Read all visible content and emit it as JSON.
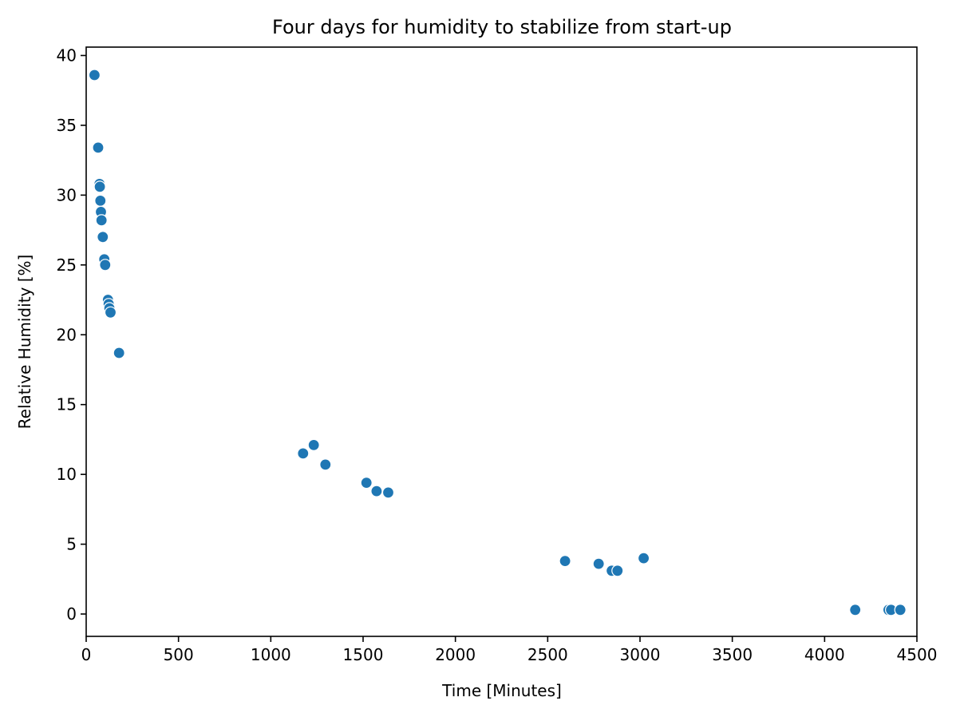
{
  "chart_data": {
    "type": "scatter",
    "title": "Four days for humidity to stabilize from start-up",
    "xlabel": "Time [Minutes]",
    "ylabel": "Relative Humidity [%]",
    "xlim": [
      0,
      4500
    ],
    "ylim": [
      -1.6,
      40.6
    ],
    "xticks": [
      0,
      500,
      1000,
      1500,
      2000,
      2500,
      3000,
      3500,
      4000,
      4500
    ],
    "yticks": [
      0,
      5,
      10,
      15,
      20,
      25,
      30,
      35,
      40
    ],
    "grid": false,
    "legend": "none",
    "color": "#1f77b4",
    "points": [
      {
        "x": 45,
        "y": 38.6
      },
      {
        "x": 65,
        "y": 33.4
      },
      {
        "x": 72,
        "y": 30.8
      },
      {
        "x": 74,
        "y": 30.6
      },
      {
        "x": 77,
        "y": 29.6
      },
      {
        "x": 80,
        "y": 28.8
      },
      {
        "x": 83,
        "y": 28.2
      },
      {
        "x": 90,
        "y": 27.0
      },
      {
        "x": 98,
        "y": 25.4
      },
      {
        "x": 103,
        "y": 25.0
      },
      {
        "x": 118,
        "y": 22.5
      },
      {
        "x": 122,
        "y": 22.2
      },
      {
        "x": 126,
        "y": 21.9
      },
      {
        "x": 132,
        "y": 21.6
      },
      {
        "x": 178,
        "y": 18.7
      },
      {
        "x": 1175,
        "y": 11.5
      },
      {
        "x": 1233,
        "y": 12.1
      },
      {
        "x": 1296,
        "y": 10.7
      },
      {
        "x": 1518,
        "y": 9.4
      },
      {
        "x": 1573,
        "y": 8.8
      },
      {
        "x": 1636,
        "y": 8.7
      },
      {
        "x": 2594,
        "y": 3.8
      },
      {
        "x": 2776,
        "y": 3.6
      },
      {
        "x": 2847,
        "y": 3.1
      },
      {
        "x": 2878,
        "y": 3.1
      },
      {
        "x": 3020,
        "y": 4.0
      },
      {
        "x": 4166,
        "y": 0.3
      },
      {
        "x": 4346,
        "y": 0.3
      },
      {
        "x": 4360,
        "y": 0.3
      },
      {
        "x": 4410,
        "y": 0.3
      }
    ]
  }
}
